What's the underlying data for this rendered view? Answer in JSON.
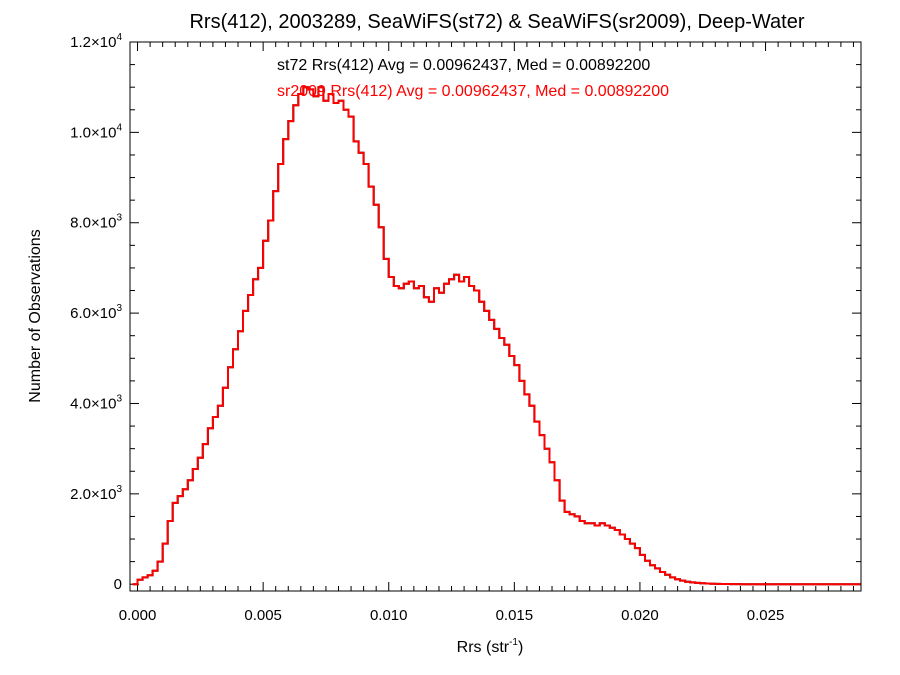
{
  "chart_data": {
    "type": "line",
    "style": "histogram-step",
    "title": "Rrs(412), 2003289, SeaWiFS(st72) & SeaWiFS(sr2009), Deep-Water",
    "xlabel": "Rrs (str",
    "xlabel_sup": "-1",
    "xlabel_close": ")",
    "ylabel": "Number of Observations",
    "xlim": [
      -0.0003,
      0.0288
    ],
    "ylim": [
      -150,
      12000
    ],
    "x_ticks": [
      0.0,
      0.005,
      0.01,
      0.015,
      0.02,
      0.025
    ],
    "x_tick_labels": [
      "0.000",
      "0.005",
      "0.010",
      "0.015",
      "0.020",
      "0.025"
    ],
    "y_ticks": [
      0,
      2000,
      4000,
      6000,
      8000,
      10000,
      12000
    ],
    "y_tick_labels": [
      {
        "mant": "0",
        "exp": ""
      },
      {
        "mant": "2.0×10",
        "exp": "3"
      },
      {
        "mant": "4.0×10",
        "exp": "3"
      },
      {
        "mant": "6.0×10",
        "exp": "3"
      },
      {
        "mant": "8.0×10",
        "exp": "3"
      },
      {
        "mant": "1.0×10",
        "exp": "4"
      },
      {
        "mant": "1.2×10",
        "exp": "4"
      }
    ],
    "annotations": [
      {
        "text": "st72 Rrs(412) Avg = 0.00962437, Med = 0.00892200",
        "color": "#000000"
      },
      {
        "text": "sr2009 Rrs(412) Avg = 0.00962437, Med = 0.00892200",
        "color": "#ff0000"
      }
    ],
    "series": [
      {
        "name": "st72",
        "color": "#000000",
        "x": [
          -0.0002,
          0.0,
          0.0002,
          0.0004,
          0.0006,
          0.0008,
          0.001,
          0.0012,
          0.0014,
          0.0016,
          0.0018,
          0.002,
          0.0022,
          0.0024,
          0.0026,
          0.0028,
          0.003,
          0.0032,
          0.0034,
          0.0036,
          0.0038,
          0.004,
          0.0042,
          0.0044,
          0.0046,
          0.0048,
          0.005,
          0.0052,
          0.0054,
          0.0056,
          0.0058,
          0.006,
          0.0062,
          0.0064,
          0.0066,
          0.0068,
          0.007,
          0.0072,
          0.0074,
          0.0076,
          0.0078,
          0.008,
          0.0082,
          0.0084,
          0.0086,
          0.0088,
          0.009,
          0.0092,
          0.0094,
          0.0096,
          0.0098,
          0.01,
          0.0102,
          0.0104,
          0.0106,
          0.0108,
          0.011,
          0.0112,
          0.0114,
          0.0116,
          0.0118,
          0.012,
          0.0122,
          0.0124,
          0.0126,
          0.0128,
          0.013,
          0.0132,
          0.0134,
          0.0136,
          0.0138,
          0.014,
          0.0142,
          0.0144,
          0.0146,
          0.0148,
          0.015,
          0.0152,
          0.0154,
          0.0156,
          0.0158,
          0.016,
          0.0162,
          0.0164,
          0.0166,
          0.0168,
          0.017,
          0.0172,
          0.0174,
          0.0176,
          0.0178,
          0.018,
          0.0182,
          0.0184,
          0.0186,
          0.0188,
          0.019,
          0.0192,
          0.0194,
          0.0196,
          0.0198,
          0.02,
          0.0202,
          0.0204,
          0.0206,
          0.0208,
          0.021,
          0.0212,
          0.0214,
          0.0216,
          0.0218,
          0.022,
          0.0222,
          0.0224,
          0.0226,
          0.0228,
          0.023,
          0.0232,
          0.0234,
          0.0236,
          0.0238,
          0.024,
          0.0245,
          0.025,
          0.026,
          0.027,
          0.028,
          0.0288
        ],
        "values": [
          0,
          100,
          150,
          200,
          300,
          500,
          900,
          1400,
          1800,
          1950,
          2100,
          2300,
          2550,
          2800,
          3100,
          3450,
          3700,
          3950,
          4350,
          4800,
          5200,
          5600,
          6050,
          6400,
          6750,
          7000,
          7600,
          8050,
          8700,
          9300,
          9850,
          10250,
          10600,
          10850,
          11000,
          10950,
          10800,
          11000,
          10700,
          10850,
          10650,
          10700,
          10500,
          10350,
          9800,
          9550,
          9300,
          8800,
          8400,
          7900,
          7200,
          6800,
          6600,
          6550,
          6650,
          6700,
          6550,
          6600,
          6350,
          6250,
          6550,
          6450,
          6650,
          6750,
          6850,
          6700,
          6800,
          6600,
          6500,
          6250,
          6050,
          5850,
          5650,
          5450,
          5300,
          5050,
          4850,
          4500,
          4200,
          3950,
          3600,
          3300,
          3000,
          2700,
          2300,
          1850,
          1600,
          1550,
          1500,
          1400,
          1350,
          1350,
          1300,
          1350,
          1300,
          1250,
          1200,
          1100,
          1000,
          900,
          800,
          650,
          520,
          420,
          350,
          270,
          210,
          150,
          110,
          80,
          55,
          40,
          30,
          20,
          15,
          10,
          8,
          5,
          4,
          3,
          2,
          0,
          0,
          0,
          0,
          0,
          0,
          0
        ]
      },
      {
        "name": "sr2009",
        "color": "#ff0000",
        "x": [
          -0.0002,
          0.0,
          0.0002,
          0.0004,
          0.0006,
          0.0008,
          0.001,
          0.0012,
          0.0014,
          0.0016,
          0.0018,
          0.002,
          0.0022,
          0.0024,
          0.0026,
          0.0028,
          0.003,
          0.0032,
          0.0034,
          0.0036,
          0.0038,
          0.004,
          0.0042,
          0.0044,
          0.0046,
          0.0048,
          0.005,
          0.0052,
          0.0054,
          0.0056,
          0.0058,
          0.006,
          0.0062,
          0.0064,
          0.0066,
          0.0068,
          0.007,
          0.0072,
          0.0074,
          0.0076,
          0.0078,
          0.008,
          0.0082,
          0.0084,
          0.0086,
          0.0088,
          0.009,
          0.0092,
          0.0094,
          0.0096,
          0.0098,
          0.01,
          0.0102,
          0.0104,
          0.0106,
          0.0108,
          0.011,
          0.0112,
          0.0114,
          0.0116,
          0.0118,
          0.012,
          0.0122,
          0.0124,
          0.0126,
          0.0128,
          0.013,
          0.0132,
          0.0134,
          0.0136,
          0.0138,
          0.014,
          0.0142,
          0.0144,
          0.0146,
          0.0148,
          0.015,
          0.0152,
          0.0154,
          0.0156,
          0.0158,
          0.016,
          0.0162,
          0.0164,
          0.0166,
          0.0168,
          0.017,
          0.0172,
          0.0174,
          0.0176,
          0.0178,
          0.018,
          0.0182,
          0.0184,
          0.0186,
          0.0188,
          0.019,
          0.0192,
          0.0194,
          0.0196,
          0.0198,
          0.02,
          0.0202,
          0.0204,
          0.0206,
          0.0208,
          0.021,
          0.0212,
          0.0214,
          0.0216,
          0.0218,
          0.022,
          0.0222,
          0.0224,
          0.0226,
          0.0228,
          0.023,
          0.0232,
          0.0234,
          0.0236,
          0.0238,
          0.024,
          0.0245,
          0.025,
          0.026,
          0.027,
          0.028,
          0.0288
        ],
        "values": [
          0,
          100,
          150,
          200,
          300,
          500,
          900,
          1400,
          1800,
          1950,
          2100,
          2300,
          2550,
          2800,
          3100,
          3450,
          3700,
          3950,
          4350,
          4800,
          5200,
          5600,
          6050,
          6400,
          6750,
          7000,
          7600,
          8050,
          8700,
          9300,
          9850,
          10250,
          10600,
          10850,
          11000,
          10950,
          10800,
          11000,
          10700,
          10850,
          10650,
          10700,
          10500,
          10350,
          9800,
          9550,
          9300,
          8800,
          8400,
          7900,
          7200,
          6800,
          6600,
          6550,
          6650,
          6700,
          6550,
          6600,
          6350,
          6250,
          6550,
          6450,
          6650,
          6750,
          6850,
          6700,
          6800,
          6600,
          6500,
          6250,
          6050,
          5850,
          5650,
          5450,
          5300,
          5050,
          4850,
          4500,
          4200,
          3950,
          3600,
          3300,
          3000,
          2700,
          2300,
          1850,
          1600,
          1550,
          1500,
          1400,
          1350,
          1350,
          1300,
          1350,
          1300,
          1250,
          1200,
          1100,
          1000,
          900,
          800,
          650,
          520,
          420,
          350,
          270,
          210,
          150,
          110,
          80,
          55,
          40,
          30,
          20,
          15,
          10,
          8,
          5,
          4,
          3,
          2,
          0,
          0,
          0,
          0,
          0,
          0,
          0
        ]
      }
    ],
    "grid": false,
    "legend": "none"
  }
}
